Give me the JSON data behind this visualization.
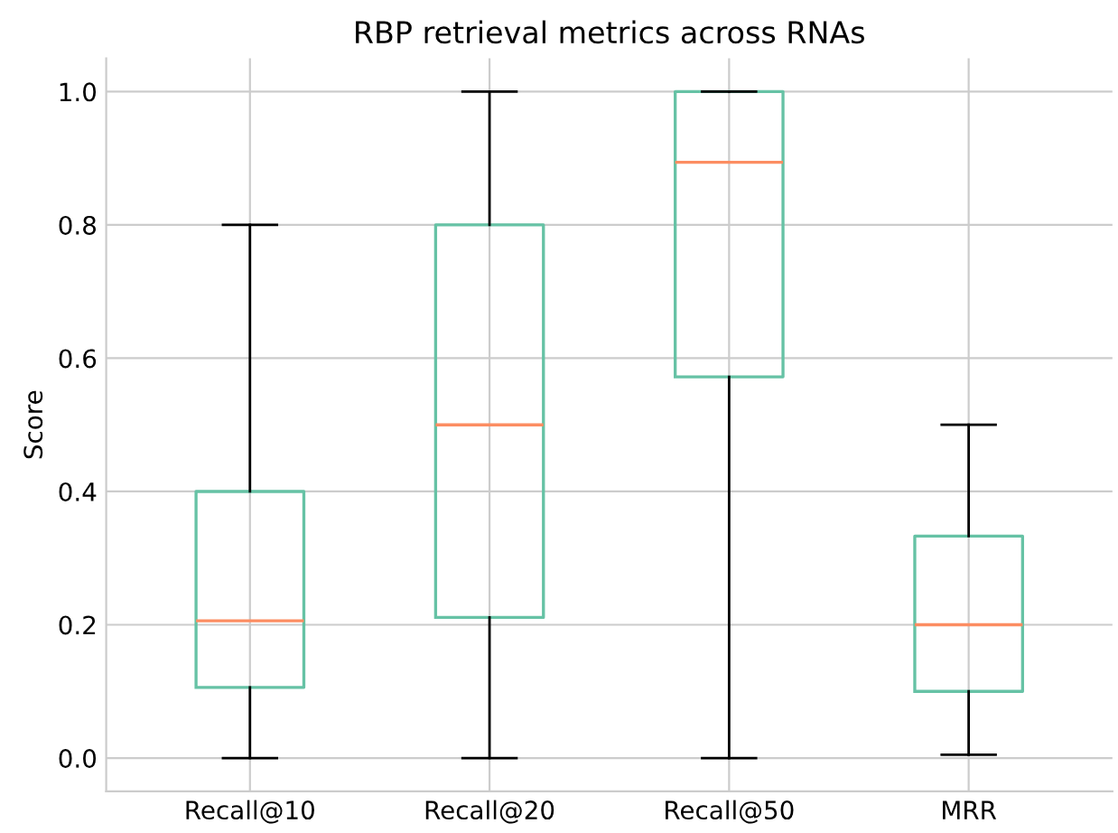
{
  "chart_data": {
    "type": "box",
    "title": "RBP retrieval metrics across RNAs",
    "ylabel": "Score",
    "categories": [
      "Recall@10",
      "Recall@20",
      "Recall@50",
      "MRR"
    ],
    "series": [
      {
        "color": "#66c2a5",
        "boxes": [
          {
            "low": 0,
            "q1": 0.106,
            "median": 0.206,
            "q3": 0.4,
            "high": 0.8
          },
          {
            "low": 0,
            "q1": 0.211,
            "median": 0.5,
            "q3": 0.8,
            "high": 1.0
          },
          {
            "low": 0,
            "q1": 0.572,
            "median": 0.894,
            "q3": 1.0,
            "high": 1.0
          },
          {
            "low": 0.005,
            "q1": 0.1,
            "median": 0.2,
            "q3": 0.333,
            "high": 0.5
          }
        ]
      }
    ],
    "ylim": [
      -0.05,
      1.05
    ],
    "yticks": [
      {
        "value": 0,
        "label": "0.0"
      },
      {
        "value": 0.2,
        "label": "0.2"
      },
      {
        "value": 0.4,
        "label": "0.4"
      },
      {
        "value": 0.6,
        "label": "0.6"
      },
      {
        "value": 0.8,
        "label": "0.8"
      },
      {
        "value": 1.0,
        "label": "1.0"
      }
    ],
    "grid": true
  }
}
